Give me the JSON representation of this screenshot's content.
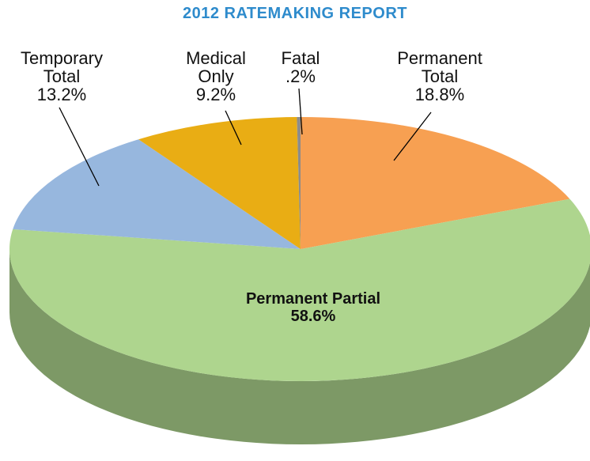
{
  "chart_data": {
    "type": "pie3d",
    "title": "2012 RATEMAKING REPORT",
    "categories": [
      "Permanent Total",
      "Permanent Partial",
      "Temporary Total",
      "Medical Only",
      "Fatal"
    ],
    "values": [
      18.8,
      58.6,
      13.2,
      9.2,
      0.2
    ],
    "value_labels": [
      "18.8%",
      "58.6%",
      "13.2%",
      "9.2%",
      ".2%"
    ],
    "colors": [
      "#f7a052",
      "#aed58e",
      "#97b7de",
      "#e9ad14",
      "#8c8c8c"
    ]
  }
}
